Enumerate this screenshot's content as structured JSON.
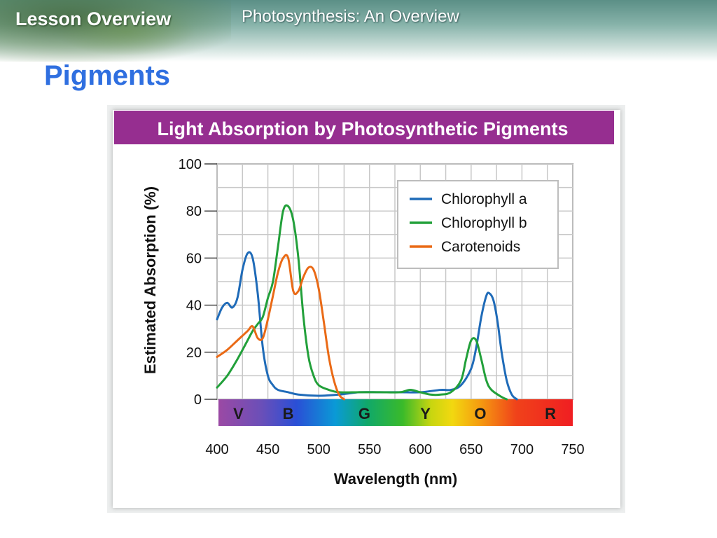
{
  "header": {
    "section_label": "Lesson Overview",
    "deck_title": "Photosynthesis: An Overview"
  },
  "slide": {
    "title": "Pigments"
  },
  "colors": {
    "title_blue": "#2f6fe0",
    "chart_header_purple": "#962e90",
    "chlorophyll_a": "#1f6bb8",
    "chlorophyll_b": "#22a03a",
    "carotenoids": "#ea6a16"
  },
  "chart_data": {
    "type": "line",
    "title": "Light Absorption by Photosynthetic Pigments",
    "xlabel": "Wavelength (nm)",
    "ylabel": "Estimated Absorption (%)",
    "xlim": [
      400,
      750
    ],
    "ylim": [
      0,
      100
    ],
    "x_ticks": [
      400,
      450,
      500,
      550,
      600,
      650,
      700,
      750
    ],
    "y_ticks": [
      0,
      20,
      40,
      60,
      80,
      100
    ],
    "grid": true,
    "legend_position": "top-right",
    "color_bands": [
      {
        "label": "V",
        "x": 421
      },
      {
        "label": "B",
        "x": 470
      },
      {
        "label": "G",
        "x": 545
      },
      {
        "label": "Y",
        "x": 605
      },
      {
        "label": "O",
        "x": 659
      },
      {
        "label": "R",
        "x": 728
      }
    ],
    "series": [
      {
        "name": "Chlorophyll a",
        "color": "#1f6bb8",
        "x": [
          400,
          405,
          410,
          415,
          420,
          425,
          430,
          435,
          440,
          445,
          450,
          455,
          460,
          470,
          480,
          500,
          520,
          540,
          560,
          580,
          600,
          620,
          630,
          640,
          650,
          655,
          660,
          665,
          668,
          672,
          676,
          680,
          685,
          690,
          695
        ],
        "y": [
          34,
          39,
          41,
          39,
          43,
          55,
          62,
          60,
          45,
          22,
          10,
          6,
          4,
          3,
          2,
          1.5,
          2,
          3,
          3,
          3,
          3,
          4,
          4,
          6,
          13,
          22,
          35,
          44,
          45,
          42,
          33,
          20,
          8,
          2,
          0
        ]
      },
      {
        "name": "Chlorophyll b",
        "color": "#22a03a",
        "x": [
          400,
          410,
          420,
          430,
          435,
          440,
          445,
          450,
          455,
          460,
          465,
          470,
          475,
          480,
          485,
          490,
          495,
          500,
          510,
          520,
          540,
          560,
          580,
          590,
          600,
          610,
          620,
          630,
          640,
          645,
          650,
          655,
          660,
          665,
          670,
          680,
          685
        ],
        "y": [
          5,
          10,
          17,
          25,
          29,
          32,
          35,
          43,
          50,
          65,
          80,
          82,
          76,
          60,
          35,
          18,
          10,
          6,
          4,
          3,
          3,
          3,
          3,
          4,
          3,
          2,
          2,
          3,
          8,
          17,
          25,
          25,
          17,
          8,
          4,
          1,
          0
        ]
      },
      {
        "name": "Carotenoids",
        "color": "#ea6a16",
        "x": [
          400,
          410,
          420,
          430,
          435,
          440,
          445,
          450,
          455,
          460,
          465,
          470,
          475,
          480,
          485,
          490,
          495,
          500,
          505,
          510,
          515,
          520,
          525
        ],
        "y": [
          18,
          21,
          25,
          29,
          31,
          26,
          26,
          34,
          44,
          54,
          60,
          60,
          46,
          46,
          52,
          56,
          55,
          47,
          33,
          18,
          8,
          2,
          0
        ]
      }
    ]
  }
}
